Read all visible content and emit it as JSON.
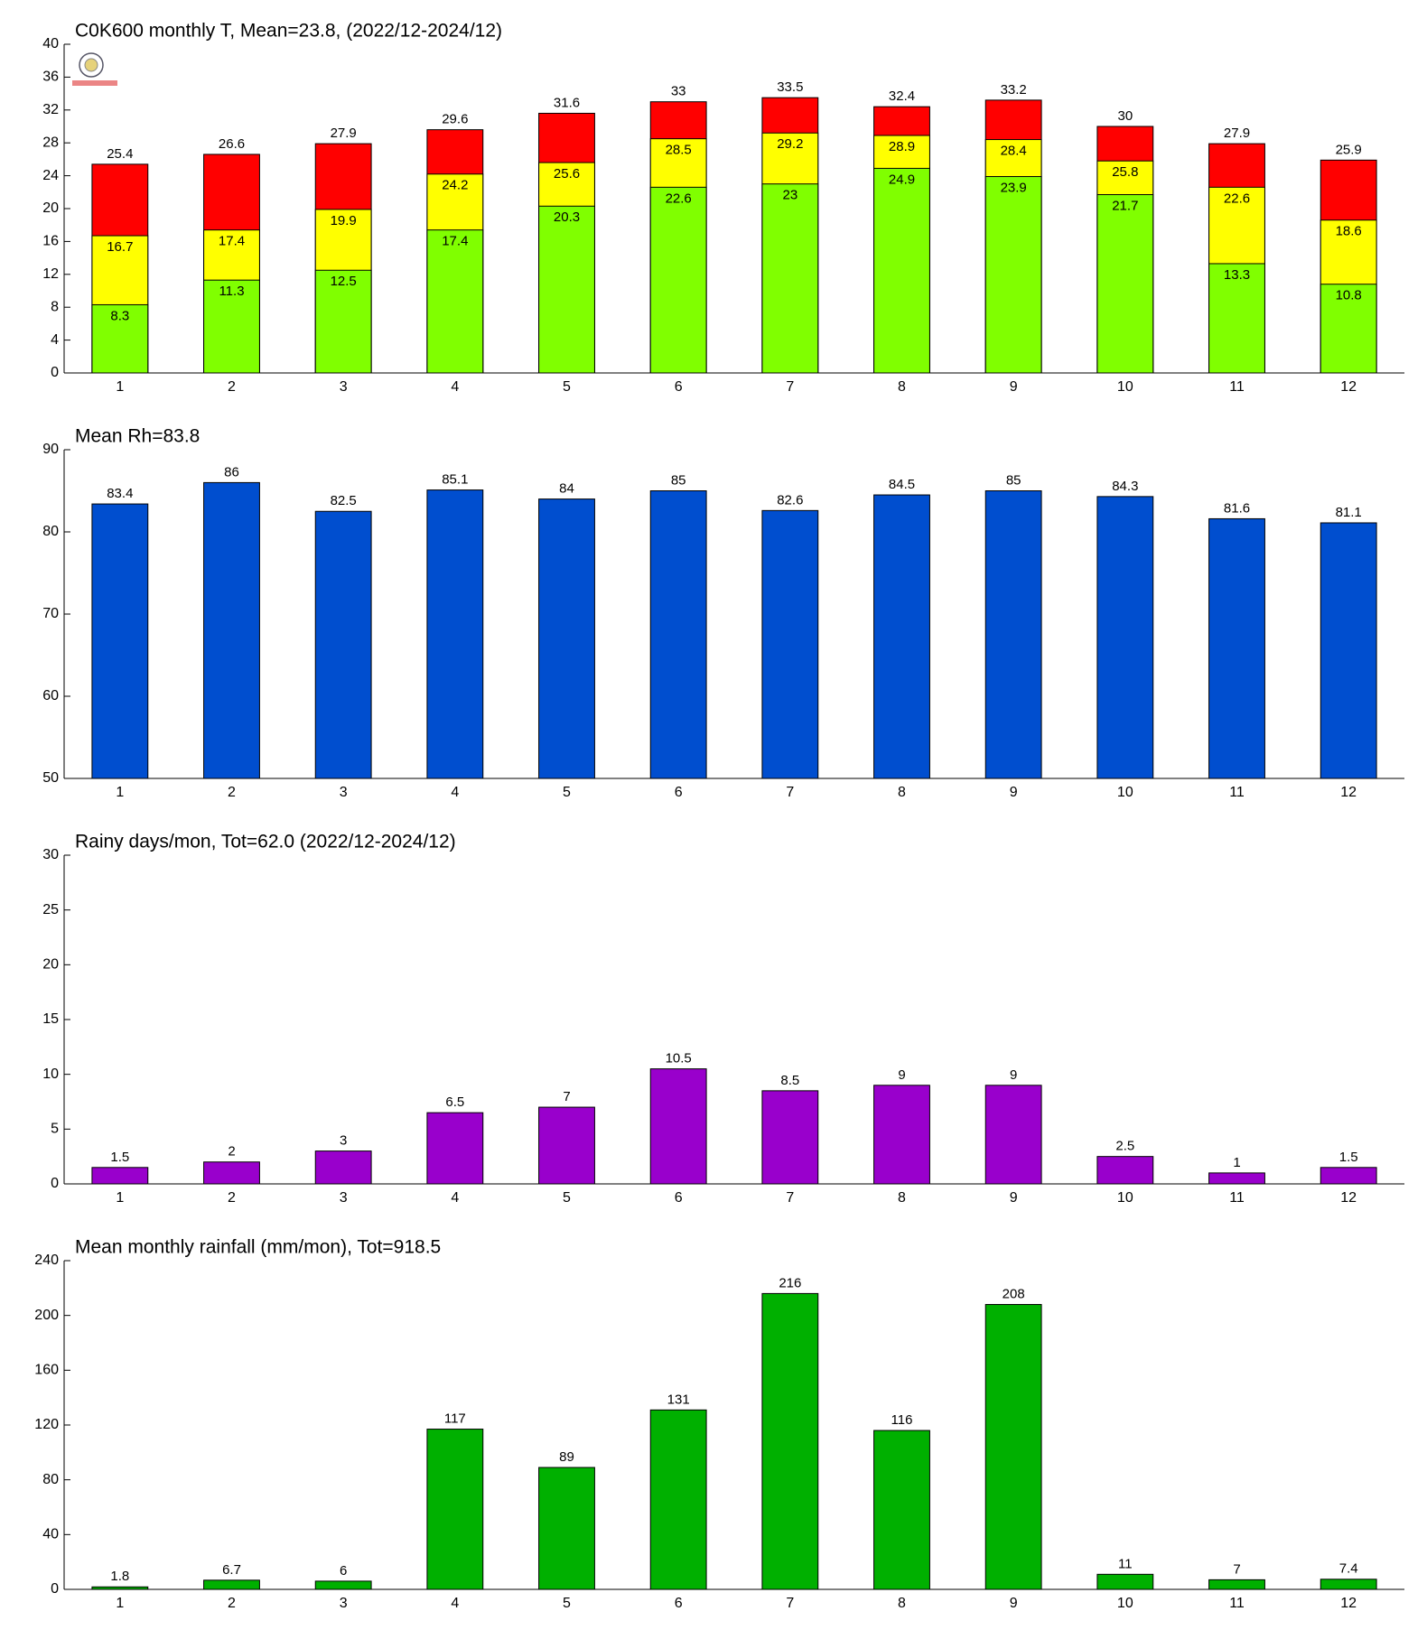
{
  "chart_data": [
    {
      "type": "bar",
      "title": "C0K600 monthly T, Mean=23.8, (2022/12-2024/12)",
      "categories": [
        1,
        2,
        3,
        4,
        5,
        6,
        7,
        8,
        9,
        10,
        11,
        12
      ],
      "series": [
        {
          "color": "#ff0000",
          "label_position": "above",
          "values": [
            25.4,
            26.6,
            27.9,
            29.6,
            31.6,
            33,
            33.5,
            32.4,
            33.2,
            30,
            27.9,
            25.9
          ]
        },
        {
          "color": "#ffff00",
          "label_position": "inside",
          "values": [
            16.7,
            17.4,
            19.9,
            24.2,
            25.6,
            28.5,
            29.2,
            28.9,
            28.4,
            25.8,
            22.6,
            18.6
          ]
        },
        {
          "color": "#80ff00",
          "label_position": "inside",
          "values": [
            8.3,
            11.3,
            12.5,
            17.4,
            20.3,
            22.6,
            23,
            24.9,
            23.9,
            21.7,
            13.3,
            10.8
          ]
        }
      ],
      "ylim": [
        0,
        40
      ],
      "yticks": [
        0,
        4,
        8,
        12,
        16,
        20,
        24,
        28,
        32,
        36,
        40
      ]
    },
    {
      "type": "bar",
      "title": "Mean Rh=83.8",
      "categories": [
        1,
        2,
        3,
        4,
        5,
        6,
        7,
        8,
        9,
        10,
        11,
        12
      ],
      "series": [
        {
          "color": "#004ecf",
          "label_position": "above",
          "values": [
            83.4,
            86,
            82.5,
            85.1,
            84,
            85,
            82.6,
            84.5,
            85,
            84.3,
            81.6,
            81.1
          ]
        }
      ],
      "ylim": [
        50,
        90
      ],
      "yticks": [
        50,
        60,
        70,
        80,
        90
      ]
    },
    {
      "type": "bar",
      "title": "Rainy days/mon, Tot=62.0 (2022/12-2024/12)",
      "categories": [
        1,
        2,
        3,
        4,
        5,
        6,
        7,
        8,
        9,
        10,
        11,
        12
      ],
      "series": [
        {
          "color": "#9900cc",
          "label_position": "above",
          "values": [
            1.5,
            2,
            3,
            6.5,
            7,
            10.5,
            8.5,
            9,
            9,
            2.5,
            1,
            1.5
          ]
        }
      ],
      "ylim": [
        0,
        30
      ],
      "yticks": [
        0,
        5,
        10,
        15,
        20,
        25,
        30
      ]
    },
    {
      "type": "bar",
      "title": "Mean monthly rainfall (mm/mon), Tot=918.5",
      "categories": [
        1,
        2,
        3,
        4,
        5,
        6,
        7,
        8,
        9,
        10,
        11,
        12
      ],
      "series": [
        {
          "color": "#00b000",
          "label_position": "above",
          "values": [
            1.8,
            6.7,
            6,
            117,
            89,
            131,
            216,
            116,
            208,
            11,
            7,
            7.4
          ]
        }
      ],
      "ylim": [
        0,
        240
      ],
      "yticks": [
        0,
        40,
        80,
        120,
        160,
        200,
        240
      ]
    }
  ]
}
